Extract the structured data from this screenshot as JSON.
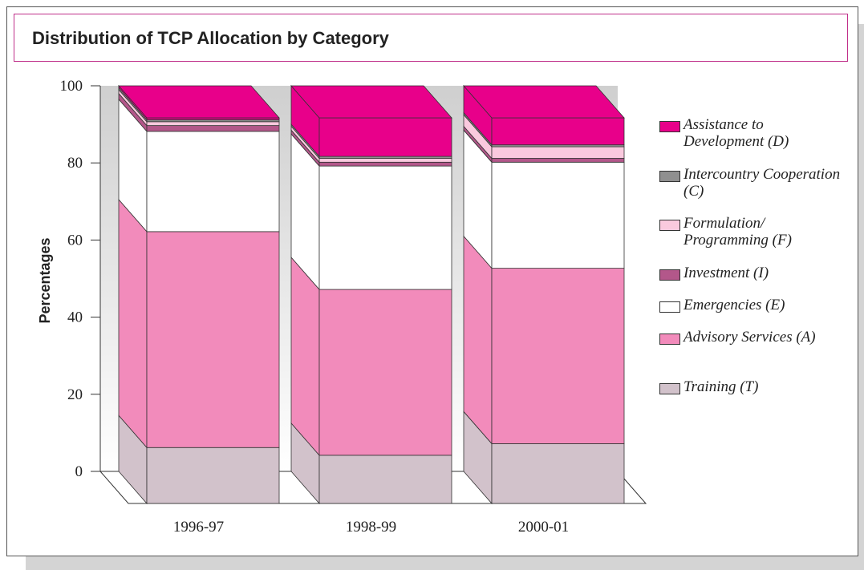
{
  "chart_data": {
    "type": "stacked_bar_3d",
    "title": "Distribution of TCP Allocation by Category",
    "y_label": "Percentages",
    "categories": [
      "1996-97",
      "1998-99",
      "2000-01"
    ],
    "series": [
      {
        "name": "Training (T)",
        "color": "#d2c2cb",
        "values": [
          14.5,
          12.5,
          15.5
        ]
      },
      {
        "name": "Advisory Services (A)",
        "color": "#f28bbb",
        "values": [
          56,
          43,
          45.5
        ]
      },
      {
        "name": "Emergencies (E)",
        "color": "#ffffff",
        "values": [
          26,
          32,
          27.5
        ]
      },
      {
        "name": "Investment (I)",
        "color": "#b3578a",
        "values": [
          1.5,
          1,
          1
        ]
      },
      {
        "name": "Formulation/ Programming (F)",
        "color": "#fac9de",
        "values": [
          1,
          1,
          3
        ]
      },
      {
        "name": "Intercountry Cooperation (C)",
        "color": "#8f8f8f",
        "values": [
          0.5,
          0.5,
          0.5
        ]
      },
      {
        "name": "Assistance to Development (D)",
        "color": "#e8008a",
        "values": [
          0.5,
          10,
          7
        ]
      }
    ],
    "ylim": [
      0,
      100
    ],
    "yticks": [
      0,
      20,
      40,
      60,
      80,
      100
    ]
  }
}
